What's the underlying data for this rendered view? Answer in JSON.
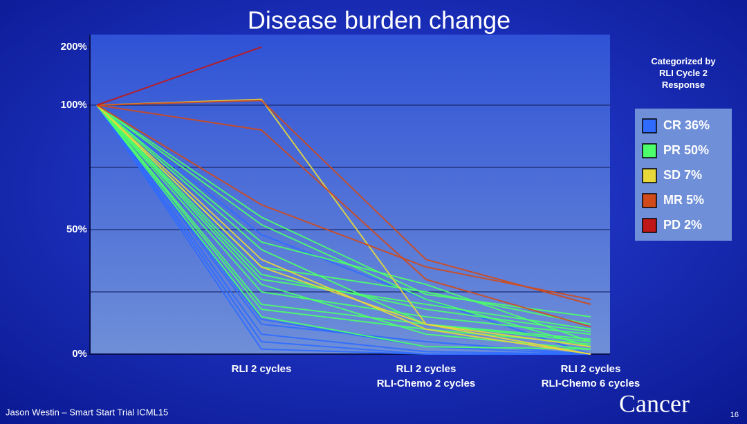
{
  "chart_data": {
    "type": "line",
    "title": "Disease burden change",
    "categories": [
      null,
      [
        "RLI 2 cycles"
      ],
      [
        "RLI 2 cycles",
        "RLI-Chemo 2 cycles"
      ],
      [
        "RLI 2 cycles",
        "RLI-Chemo 6 cycles"
      ]
    ],
    "ylim": [
      0,
      200
    ],
    "ybreak": 100,
    "yticks": [
      {
        "value": 0,
        "label": "0%"
      },
      {
        "value": 50,
        "label": "50%"
      },
      {
        "value": 100,
        "label": "100%"
      },
      {
        "value": 200,
        "label": "200%"
      }
    ],
    "ygrid": [
      25,
      50,
      75,
      100
    ],
    "legend_title": "Categorized by RLI Cycle 2 Response",
    "legend": "right",
    "series": [
      {
        "name": "CR 36%",
        "color": "#2f6bff",
        "lines": [
          [
            100,
            2,
            0,
            0
          ],
          [
            100,
            5,
            0,
            0
          ],
          [
            100,
            8,
            1,
            0
          ],
          [
            100,
            14,
            3,
            0
          ],
          [
            100,
            48,
            22,
            0
          ],
          [
            100,
            12,
            5,
            0
          ]
        ]
      },
      {
        "name": "PR 50%",
        "color": "#4dff6a",
        "lines": [
          [
            100,
            15,
            3,
            2
          ],
          [
            100,
            18,
            10,
            4
          ],
          [
            100,
            20,
            12,
            6
          ],
          [
            100,
            25,
            15,
            8
          ],
          [
            100,
            30,
            20,
            10
          ],
          [
            100,
            35,
            25,
            12
          ],
          [
            100,
            45,
            28,
            5
          ],
          [
            100,
            52,
            22,
            3
          ],
          [
            100,
            55,
            24,
            15
          ],
          [
            100,
            42,
            12,
            5
          ],
          [
            100,
            28,
            8,
            2
          ],
          [
            100,
            32,
            18,
            9
          ]
        ]
      },
      {
        "name": "SD 7%",
        "color": "#e8d83a",
        "lines": [
          [
            100,
            110,
            12,
            0
          ],
          [
            100,
            38,
            10,
            0
          ],
          [
            100,
            35,
            12,
            3
          ]
        ]
      },
      {
        "name": "MR 5%",
        "color": "#d04a1a",
        "lines": [
          [
            100,
            108,
            38,
            20
          ],
          [
            100,
            60,
            35,
            22
          ],
          [
            100,
            90,
            30,
            11
          ]
        ]
      },
      {
        "name": "PD 2%",
        "color": "#c01818",
        "lines": [
          [
            100,
            200,
            null,
            null
          ]
        ]
      }
    ]
  },
  "footer": {
    "credit": "Jason Westin – Smart Start Trial ICML15",
    "page": "16",
    "logo": "Cancer"
  }
}
